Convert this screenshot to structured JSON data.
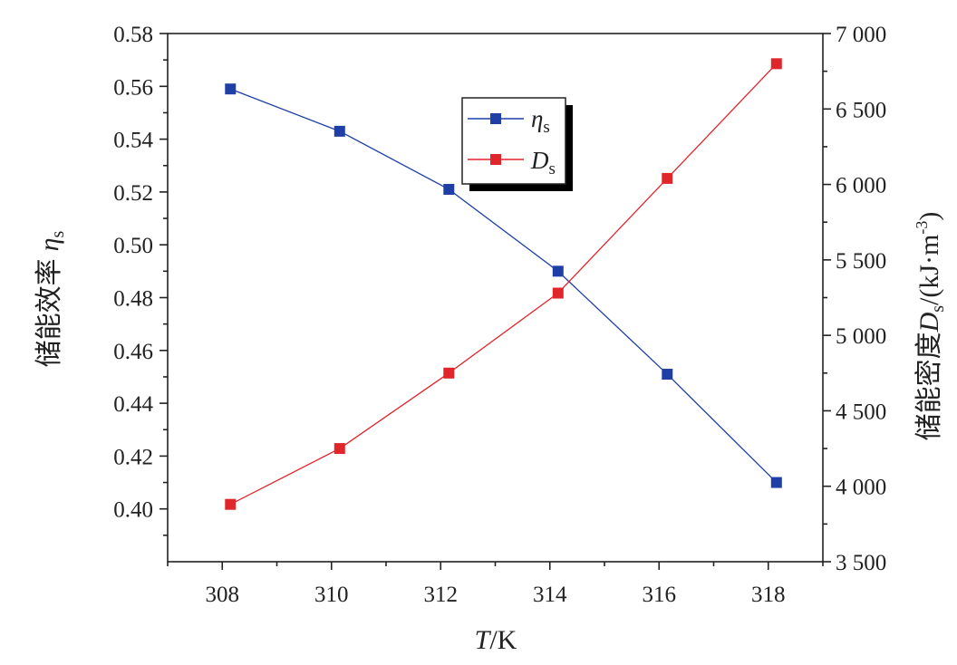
{
  "chart_data": {
    "type": "line",
    "x": [
      308.15,
      310.15,
      312.15,
      314.15,
      316.15,
      318.15
    ],
    "xlim": [
      307,
      319
    ],
    "xticks": [
      308,
      310,
      312,
      314,
      316,
      318
    ],
    "xtick_labels": [
      "308",
      "310",
      "312",
      "314",
      "316",
      "318"
    ],
    "xlabel": {
      "italic": "T",
      "rest": "/K"
    },
    "y_left": {
      "label": {
        "cjk": "储能效率",
        "italic": "η",
        "sub": "s"
      },
      "lim": [
        0.38,
        0.58
      ],
      "ticks": [
        0.4,
        0.42,
        0.44,
        0.46,
        0.48,
        0.5,
        0.52,
        0.54,
        0.56,
        0.58
      ],
      "tick_labels": [
        "0.40",
        "0.42",
        "0.44",
        "0.46",
        "0.48",
        "0.50",
        "0.52",
        "0.54",
        "0.56",
        "0.58"
      ]
    },
    "y_right": {
      "label": {
        "cjk": "储能密度",
        "italic": "D",
        "sub": "s",
        "unit_pre": "/(kJ·m",
        "unit_sup": "-3",
        "unit_post": ")"
      },
      "lim": [
        3500,
        7000
      ],
      "ticks": [
        3500,
        4000,
        4500,
        5000,
        5500,
        6000,
        6500,
        7000
      ],
      "tick_labels": [
        "3 500",
        "4 000",
        "4 500",
        "5 000",
        "5 500",
        "6 000",
        "6 500",
        "7 000"
      ]
    },
    "series": [
      {
        "name": "ηs",
        "name_italic": "η",
        "name_sub": "s",
        "axis": "left",
        "color": "#1f3fa6",
        "values": [
          0.559,
          0.543,
          0.521,
          0.49,
          0.451,
          0.41
        ]
      },
      {
        "name": "Ds",
        "name_italic": "D",
        "name_sub": "s",
        "axis": "right",
        "color": "#e0252b",
        "values": [
          3880,
          4250,
          4750,
          5280,
          6040,
          6800
        ]
      }
    ],
    "legend_position": "top-center",
    "grid": false
  }
}
